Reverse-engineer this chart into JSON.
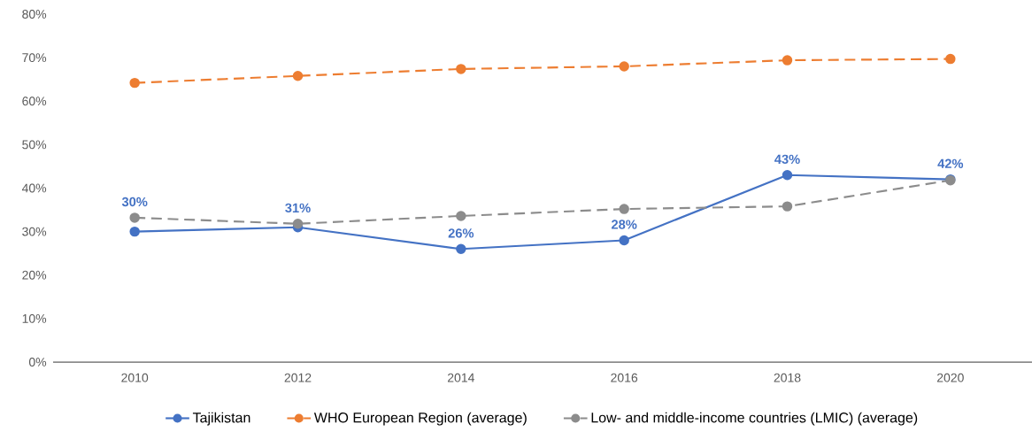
{
  "chart_data": {
    "type": "line",
    "categories": [
      "2010",
      "2012",
      "2014",
      "2016",
      "2018",
      "2020"
    ],
    "series": [
      {
        "name": "Tajikistan",
        "color": "#4472c4",
        "values": [
          30,
          31,
          26,
          28,
          43,
          42
        ],
        "value_labels": [
          "30%",
          "31%",
          "26%",
          "28%",
          "43%",
          "42%"
        ],
        "line_style": "solid"
      },
      {
        "name": "WHO European Region (average)",
        "color": "#ed7d31",
        "values": [
          64.2,
          65.8,
          67.4,
          68.0,
          69.4,
          69.7
        ],
        "line_style": "dashed"
      },
      {
        "name": "Low- and middle-income countries (LMIC) (average)",
        "color": "#8c8c8c",
        "values": [
          33.2,
          31.8,
          33.6,
          35.2,
          35.8,
          41.8
        ],
        "line_style": "dashed"
      }
    ],
    "ylim": [
      0,
      80
    ],
    "yticks": [
      {
        "value": 0,
        "label": "0%"
      },
      {
        "value": 10,
        "label": "10%"
      },
      {
        "value": 20,
        "label": "20%"
      },
      {
        "value": 30,
        "label": "30%"
      },
      {
        "value": 40,
        "label": "40%"
      },
      {
        "value": 50,
        "label": "50%"
      },
      {
        "value": 60,
        "label": "60%"
      },
      {
        "value": 70,
        "label": "70%"
      },
      {
        "value": 80,
        "label": "80%"
      }
    ],
    "grid": false,
    "legend": "bottom",
    "marker": "circle"
  }
}
